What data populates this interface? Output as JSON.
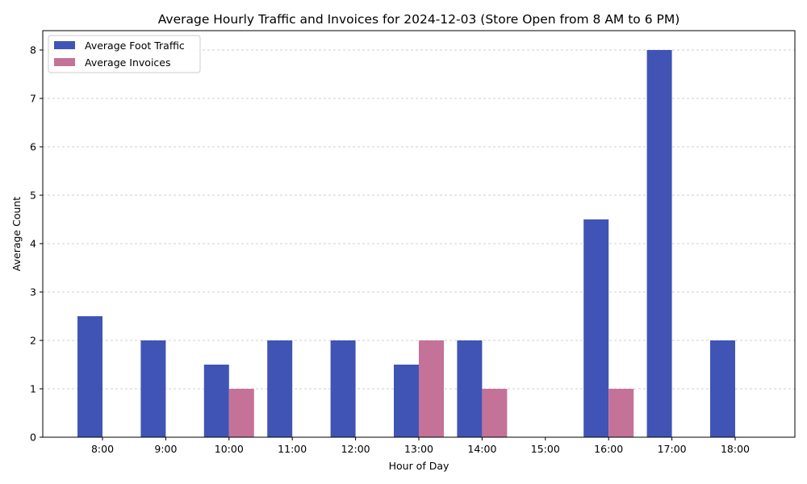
{
  "chart_data": {
    "type": "bar",
    "title": "Average Hourly Traffic and Invoices for 2024-12-03 (Store Open from 8 AM to 6 PM)",
    "xlabel": "Hour of Day",
    "ylabel": "Average Count",
    "categories": [
      "8:00",
      "9:00",
      "10:00",
      "11:00",
      "12:00",
      "13:00",
      "14:00",
      "15:00",
      "16:00",
      "17:00",
      "18:00"
    ],
    "series": [
      {
        "name": "Average Foot Traffic",
        "color": "#4054b6",
        "values": [
          2.5,
          2,
          1.5,
          2,
          2,
          1.5,
          2,
          0,
          4.5,
          8,
          2
        ]
      },
      {
        "name": "Average Invoices",
        "color": "#c57298",
        "values": [
          0,
          0,
          1,
          0,
          0,
          2,
          1,
          0,
          1,
          0,
          0
        ]
      }
    ],
    "ylim": [
      0,
      8.4
    ],
    "yticks": [
      0,
      1,
      2,
      3,
      4,
      5,
      6,
      7,
      8
    ],
    "grid": "y-dashed",
    "legend_position": "top-left"
  }
}
